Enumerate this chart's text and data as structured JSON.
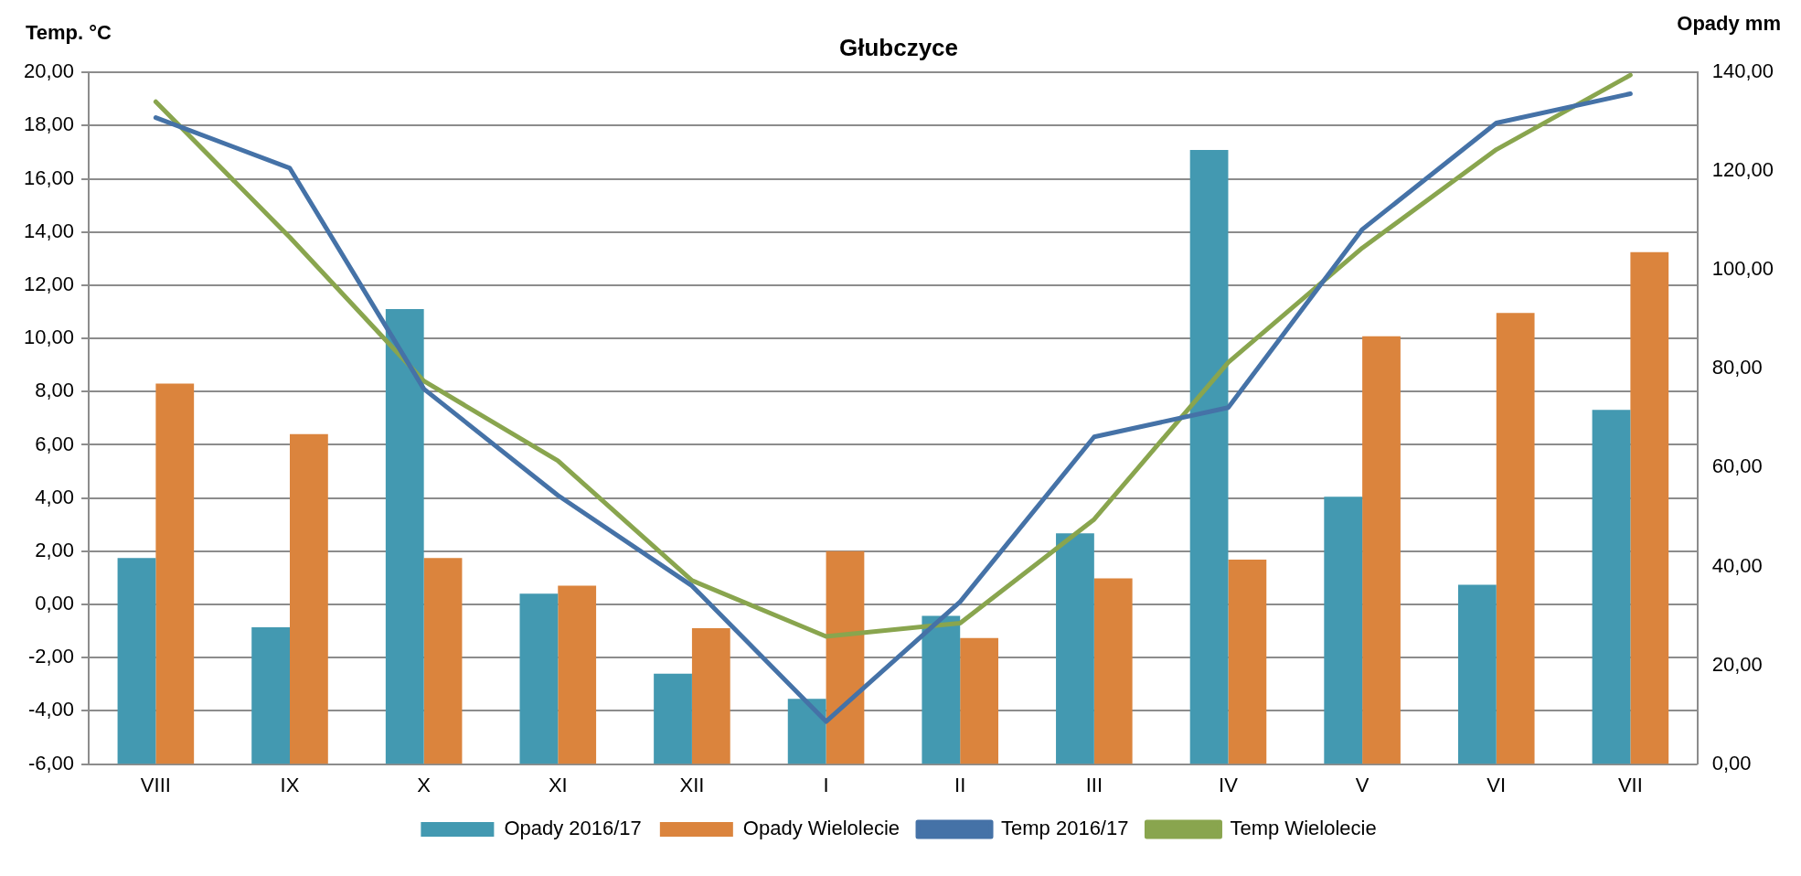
{
  "chart_data": {
    "type": "bar",
    "title": "Głubczyce",
    "ylabel": "Temp. °C",
    "y2label": "Opady mm",
    "categories": [
      "VIII",
      "IX",
      "X",
      "XI",
      "XII",
      "I",
      "II",
      "III",
      "IV",
      "V",
      "VI",
      "VII"
    ],
    "series": [
      {
        "name": "Opady 2016/17",
        "axis": "y2",
        "color": "#4399b1",
        "values": [
          41.7,
          27.7,
          92.1,
          34.5,
          18.3,
          13.2,
          30.0,
          46.7,
          124.3,
          54.1,
          36.3,
          71.7
        ]
      },
      {
        "name": "Opady Wielolecie",
        "axis": "y2",
        "color": "#db843d",
        "values": [
          77.0,
          66.8,
          41.7,
          36.1,
          27.5,
          43.1,
          25.5,
          37.6,
          41.4,
          86.6,
          91.3,
          103.6
        ]
      },
      {
        "name": "Temp 2016/17",
        "type": "line",
        "color": "#4572a7",
        "values": [
          18.3,
          16.4,
          8.1,
          4.1,
          0.7,
          -4.4,
          0.1,
          6.3,
          7.4,
          14.1,
          18.1,
          19.2
        ]
      },
      {
        "name": "Temp Wielolecie",
        "type": "line",
        "color": "#89a54e",
        "values": [
          18.9,
          13.8,
          8.4,
          5.4,
          0.9,
          -1.2,
          -0.7,
          3.2,
          9.1,
          13.4,
          17.1,
          19.9
        ]
      }
    ],
    "ylim": [
      -6,
      20
    ],
    "yticks": [
      {
        "value": -6,
        "label": "-6,00"
      },
      {
        "value": -4,
        "label": "-4,00"
      },
      {
        "value": -2,
        "label": "-2,00"
      },
      {
        "value": 0,
        "label": "0,00"
      },
      {
        "value": 2,
        "label": "2,00"
      },
      {
        "value": 4,
        "label": "4,00"
      },
      {
        "value": 6,
        "label": "6,00"
      },
      {
        "value": 8,
        "label": "8,00"
      },
      {
        "value": 10,
        "label": "10,00"
      },
      {
        "value": 12,
        "label": "12,00"
      },
      {
        "value": 14,
        "label": "14,00"
      },
      {
        "value": 16,
        "label": "16,00"
      },
      {
        "value": 18,
        "label": "18,00"
      },
      {
        "value": 20,
        "label": "20,00"
      }
    ],
    "y2lim": [
      0,
      140
    ],
    "y2ticks": [
      {
        "value": 0,
        "label": "0,00"
      },
      {
        "value": 20,
        "label": "20,00"
      },
      {
        "value": 40,
        "label": "40,00"
      },
      {
        "value": 60,
        "label": "60,00"
      },
      {
        "value": 80,
        "label": "80,00"
      },
      {
        "value": 100,
        "label": "100,00"
      },
      {
        "value": 120,
        "label": "120,00"
      },
      {
        "value": 140,
        "label": "140,00"
      }
    ],
    "grid": "y",
    "legend": "bottom",
    "marker": "none",
    "line_style": "solid"
  }
}
